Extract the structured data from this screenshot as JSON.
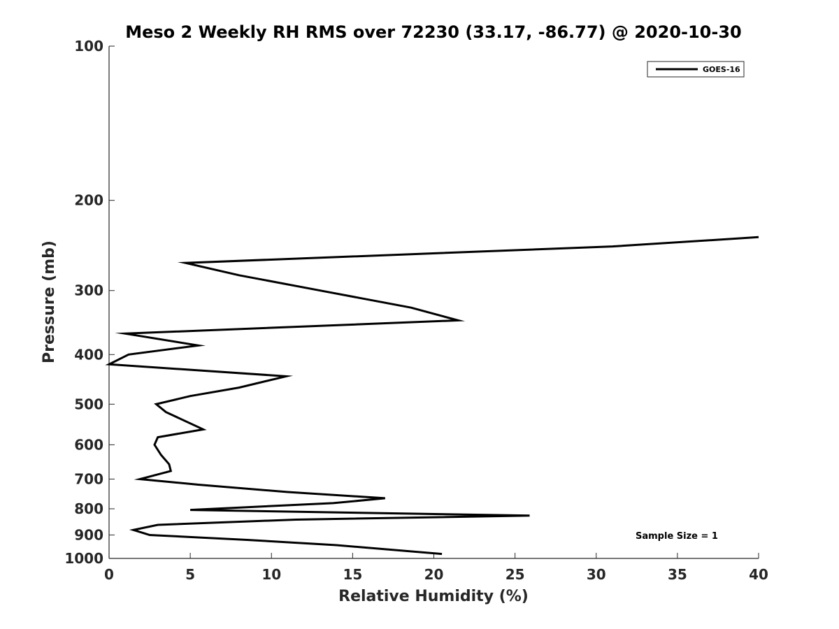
{
  "chart_data": {
    "type": "line",
    "title": "Meso 2 Weekly RH RMS over 72230 (33.17, -86.77) @ 2020-10-30",
    "xlabel": "Relative Humidity (%)",
    "ylabel": "Pressure (mb)",
    "xlim": [
      0,
      40
    ],
    "ylim": [
      100,
      1000
    ],
    "yscale": "log",
    "y_reversed": true,
    "grid": false,
    "xticks": [
      0,
      5,
      10,
      15,
      20,
      25,
      30,
      35,
      40
    ],
    "xtick_labels": [
      "0",
      "5",
      "10",
      "15",
      "20",
      "25",
      "30",
      "35",
      "40"
    ],
    "yticks": [
      100,
      200,
      300,
      400,
      500,
      600,
      700,
      800,
      900,
      1000
    ],
    "ytick_labels": [
      "100",
      "200",
      "300",
      "400",
      "500",
      "600",
      "700",
      "800",
      "900",
      "1000"
    ],
    "legend": {
      "position": "top-right",
      "entries": [
        "GOES-16"
      ]
    },
    "annotation": "Sample Size = 1",
    "series": [
      {
        "name": "GOES-16",
        "color": "#000000",
        "points": [
          {
            "x": 40.0,
            "y": 236
          },
          {
            "x": 31.0,
            "y": 246
          },
          {
            "x": 4.7,
            "y": 265
          },
          {
            "x": 8.0,
            "y": 280
          },
          {
            "x": 13.0,
            "y": 300
          },
          {
            "x": 18.6,
            "y": 324
          },
          {
            "x": 21.5,
            "y": 343
          },
          {
            "x": 1.0,
            "y": 364
          },
          {
            "x": 5.5,
            "y": 384
          },
          {
            "x": 1.2,
            "y": 400
          },
          {
            "x": 0.0,
            "y": 418
          },
          {
            "x": 10.9,
            "y": 441
          },
          {
            "x": 8.0,
            "y": 464
          },
          {
            "x": 5.0,
            "y": 482
          },
          {
            "x": 2.9,
            "y": 500
          },
          {
            "x": 3.5,
            "y": 518
          },
          {
            "x": 5.8,
            "y": 560
          },
          {
            "x": 3.0,
            "y": 580
          },
          {
            "x": 2.8,
            "y": 600
          },
          {
            "x": 3.2,
            "y": 628
          },
          {
            "x": 3.7,
            "y": 655
          },
          {
            "x": 3.8,
            "y": 675
          },
          {
            "x": 1.9,
            "y": 700
          },
          {
            "x": 5.5,
            "y": 718
          },
          {
            "x": 11.0,
            "y": 742
          },
          {
            "x": 17.0,
            "y": 763
          },
          {
            "x": 13.8,
            "y": 780
          },
          {
            "x": 5.0,
            "y": 804
          },
          {
            "x": 25.9,
            "y": 825
          },
          {
            "x": 11.5,
            "y": 840
          },
          {
            "x": 3.0,
            "y": 860
          },
          {
            "x": 1.5,
            "y": 880
          },
          {
            "x": 2.5,
            "y": 900
          },
          {
            "x": 8.5,
            "y": 920
          },
          {
            "x": 14.0,
            "y": 942
          },
          {
            "x": 20.5,
            "y": 980
          }
        ]
      }
    ]
  }
}
